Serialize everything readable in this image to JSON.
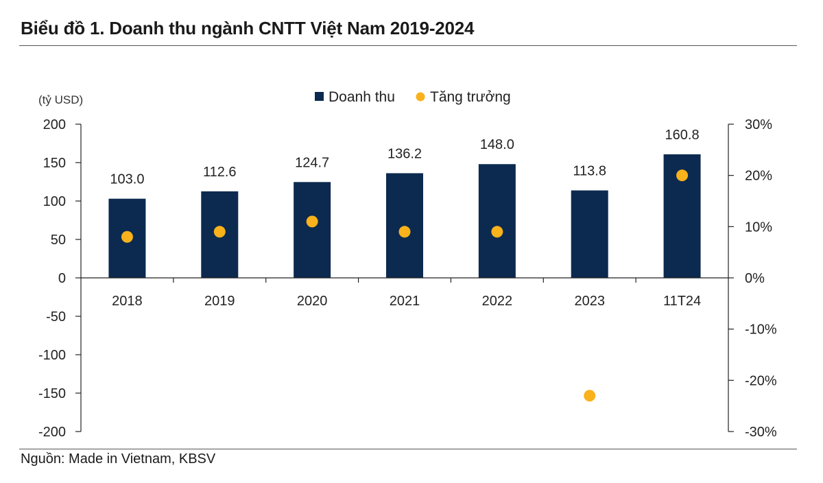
{
  "title": "Biểu đồ 1. Doanh thu ngành CNTT Việt Nam 2019-2024",
  "source": "Nguồn: Made in Vietnam, KBSV",
  "colors": {
    "bar": "#0c2a4f",
    "dot": "#f9b21b",
    "axis": "#222222"
  },
  "chart_data": {
    "type": "bar",
    "unit_label": "(tỷ USD)",
    "categories": [
      "2018",
      "2019",
      "2020",
      "2021",
      "2022",
      "2023",
      "11T24"
    ],
    "series": [
      {
        "name": "Doanh thu",
        "type": "bar",
        "axis": "left",
        "values": [
          103.0,
          112.6,
          124.7,
          136.2,
          148.0,
          113.8,
          160.8
        ],
        "labels": [
          "103.0",
          "112.6",
          "124.7",
          "136.2",
          "148.0",
          "113.8",
          "160.8"
        ]
      },
      {
        "name": "Tăng trưởng",
        "type": "scatter",
        "axis": "right",
        "values": [
          8,
          9,
          11,
          9,
          9,
          -23,
          20
        ]
      }
    ],
    "y_left": {
      "range": [
        -200,
        200
      ],
      "ticks": [
        200,
        150,
        100,
        50,
        0,
        -50,
        -100,
        -150,
        -200
      ],
      "tick_labels": [
        "200",
        "150",
        "100",
        "50",
        "0",
        "-50",
        "-100",
        "-150",
        "-200"
      ]
    },
    "y_right": {
      "range": [
        -30,
        30
      ],
      "ticks": [
        30,
        20,
        10,
        0,
        -10,
        -20,
        -30
      ],
      "tick_labels": [
        "30%",
        "20%",
        "10%",
        "0%",
        "-10%",
        "-20%",
        "-30%"
      ]
    },
    "legend_position": "top-center",
    "grid": false
  }
}
